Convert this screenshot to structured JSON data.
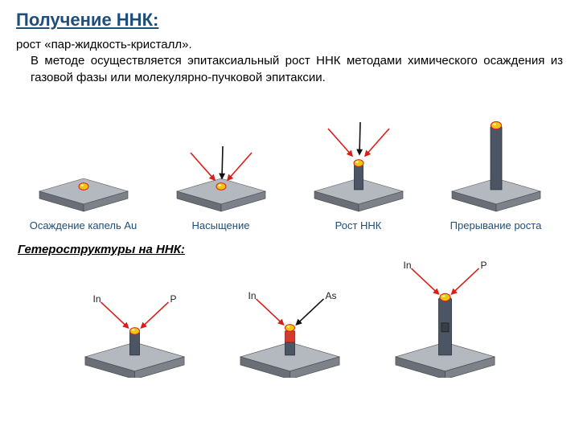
{
  "title": "Получение ННК:",
  "title_color": "#1f4e79",
  "description": {
    "lead": "рост «пар-жидкость-кристалл».",
    "body": "В методе осуществляется эпитаксиальный рост ННК методами химического осаждения из газовой фазы или молекулярно-пучковой эпитаксии."
  },
  "subheading": "Гетероструктуры на ННК:",
  "colors": {
    "substrate_top": "#b4b9c0",
    "substrate_side": "#7d8189",
    "substrate_front": "#6a6e77",
    "droplet_fill": "#f1c40f",
    "droplet_stroke": "#d91e18",
    "wire_fill": "#4b5563",
    "wire_stroke": "#2b3038",
    "segment_red": "#d63a2e",
    "segment_dark": "#3a3f47",
    "arrow_red": "#d91e18",
    "arrow_black": "#111111",
    "label_text": "#1f4e79",
    "flux_text": "#222222"
  },
  "row1": [
    {
      "caption": "Осаждение капель Au",
      "type": "droplet",
      "arrows": "none"
    },
    {
      "caption": "Насыщение",
      "type": "droplet",
      "arrows": "converge"
    },
    {
      "caption": "Рост ННК",
      "type": "short_wire",
      "arrows": "converge"
    },
    {
      "caption": "Прерывание роста",
      "type": "tall_wire",
      "arrows": "none"
    }
  ],
  "row2": [
    {
      "labels": {
        "left": "In",
        "right": "P"
      },
      "wire": "plain_short",
      "arrow_style": "red_red"
    },
    {
      "labels": {
        "left": "In",
        "right": "As"
      },
      "wire": "red_segment",
      "arrow_style": "red_black"
    },
    {
      "labels": {
        "left": "In",
        "right": "P"
      },
      "wire": "tall_segment",
      "arrow_style": "red_red"
    }
  ]
}
